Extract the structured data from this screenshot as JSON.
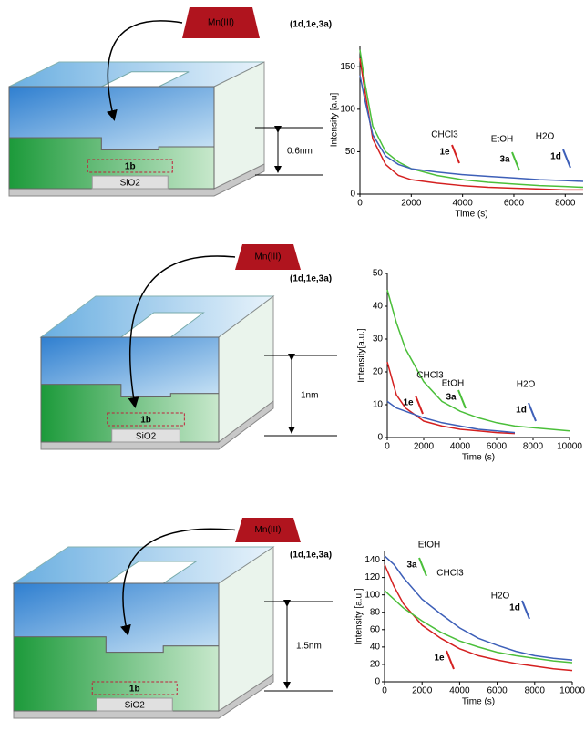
{
  "diagrams": [
    {
      "reagent": "Mn(III)",
      "ligands": "(1d,1e,3a)",
      "thickness": "0.6nm",
      "center": "1b",
      "substrate": "SiO2"
    },
    {
      "reagent": "Mn(III)",
      "ligands": "(1d,1e,3a)",
      "thickness": "1nm",
      "center": "1b",
      "substrate": "SiO2"
    },
    {
      "reagent": "Mn(III)",
      "ligands": "(1d,1e,3a)",
      "thickness": "1.5nm",
      "center": "1b",
      "substrate": "SiO2"
    }
  ],
  "chart_data": [
    {
      "type": "line",
      "x_label": "Time (s)",
      "y_label": "Intensity [a.u]",
      "x": [
        0,
        200,
        500,
        1000,
        1500,
        2000,
        3000,
        4000,
        5000,
        6000,
        7000,
        8000,
        8700
      ],
      "series": [
        {
          "name": "1e",
          "color": "#d42020",
          "values": [
            160,
            120,
            65,
            35,
            22,
            17,
            13,
            10,
            8,
            7,
            6,
            5,
            5
          ]
        },
        {
          "name": "3a",
          "color": "#4bbf3a",
          "values": [
            170,
            130,
            80,
            50,
            38,
            30,
            22,
            17,
            14,
            12,
            10,
            9,
            8
          ]
        },
        {
          "name": "1d",
          "color": "#3d5fb8",
          "values": [
            140,
            110,
            70,
            45,
            35,
            30,
            26,
            23,
            21,
            19,
            17,
            16,
            15
          ]
        }
      ],
      "annotations": [
        "CHCl3",
        "EtOH",
        "H2O"
      ],
      "xlim": [
        0,
        8700
      ],
      "xticks": [
        0,
        2000,
        4000,
        6000,
        8000
      ],
      "ylim": [
        0,
        175
      ],
      "yticks": [
        0,
        50,
        100,
        150
      ]
    },
    {
      "type": "line",
      "x_label": "Time (s)",
      "y_label": "Intensity[a.u.]",
      "x": [
        0,
        500,
        1000,
        2000,
        3000,
        4000,
        5000,
        6000,
        7000,
        8000,
        10000
      ],
      "series": [
        {
          "name": "1e",
          "color": "#d42020",
          "values": [
            23,
            13,
            9,
            5,
            3.5,
            2.5,
            2,
            1.5,
            1.2,
            null,
            null
          ]
        },
        {
          "name": "3a",
          "color": "#4bbf3a",
          "values": [
            45,
            35,
            27,
            17,
            11,
            8,
            6,
            4.5,
            3.5,
            3,
            2
          ]
        },
        {
          "name": "1d",
          "color": "#3d5fb8",
          "values": [
            11,
            9,
            8,
            6,
            4.5,
            3.5,
            2.5,
            2,
            1.5,
            null,
            null
          ]
        }
      ],
      "annotations": [
        "CHCl3",
        "EtOH",
        "H2O"
      ],
      "xlim": [
        0,
        10000
      ],
      "xticks": [
        0,
        2000,
        4000,
        6000,
        8000,
        10000
      ],
      "ylim": [
        0,
        50
      ],
      "yticks": [
        0,
        10,
        20,
        30,
        40,
        50
      ]
    },
    {
      "type": "line",
      "x_label": "Time (s)",
      "y_label": "Intensity [a.u.]",
      "x": [
        0,
        500,
        1000,
        2000,
        3000,
        4000,
        5000,
        6000,
        7000,
        8000,
        9000,
        10000
      ],
      "series": [
        {
          "name": "1e",
          "color": "#d42020",
          "values": [
            135,
            110,
            90,
            65,
            50,
            38,
            30,
            25,
            21,
            18,
            15,
            13
          ]
        },
        {
          "name": "3a",
          "color": "#4bbf3a",
          "values": [
            105,
            95,
            85,
            70,
            57,
            47,
            40,
            34,
            30,
            27,
            24,
            22
          ]
        },
        {
          "name": "1d",
          "color": "#3d5fb8",
          "values": [
            145,
            135,
            120,
            95,
            78,
            62,
            50,
            42,
            35,
            30,
            27,
            25
          ]
        }
      ],
      "annotations": [
        "EtOH",
        "CHCl3",
        "H2O"
      ],
      "xlim": [
        0,
        10000
      ],
      "xticks": [
        0,
        2000,
        4000,
        6000,
        8000,
        10000
      ],
      "ylim": [
        0,
        150
      ],
      "yticks": [
        0,
        20,
        40,
        60,
        80,
        100,
        120,
        140
      ]
    }
  ]
}
